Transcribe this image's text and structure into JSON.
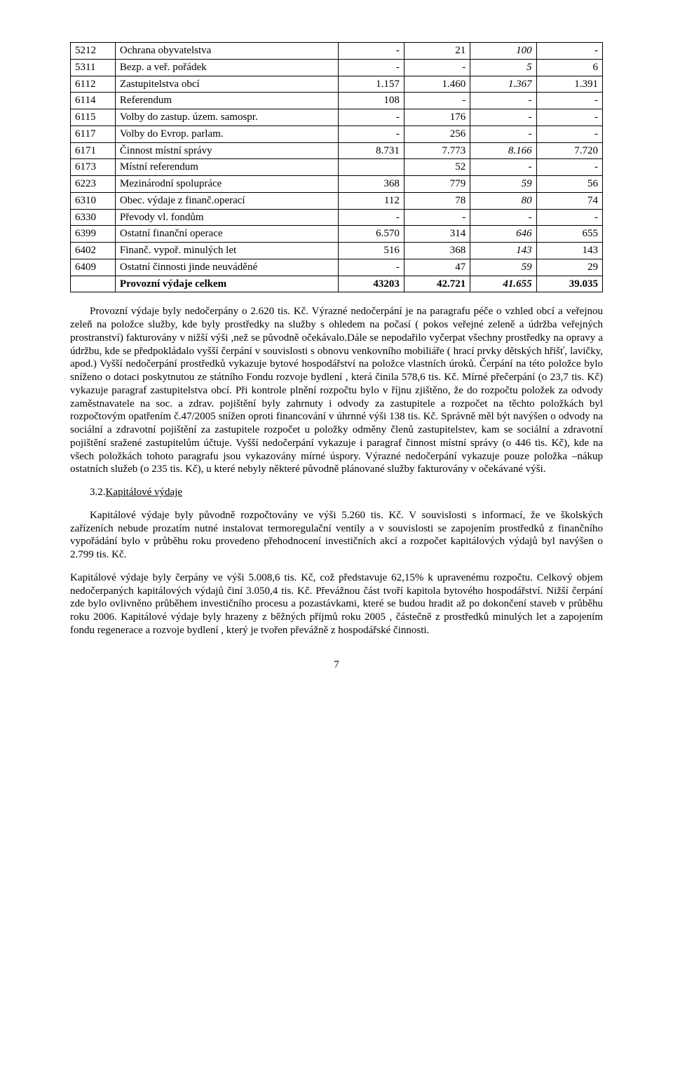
{
  "table": {
    "rows": [
      {
        "code": "5212",
        "name": "Ochrana obyvatelstva",
        "c1": "-",
        "c2": "21",
        "c3": "100",
        "c4": "-"
      },
      {
        "code": "5311",
        "name": "Bezp. a veř. pořádek",
        "c1": "-",
        "c2": "-",
        "c3": "5",
        "c4": "6"
      },
      {
        "code": "6112",
        "name": "Zastupitelstva obcí",
        "c1": "1.157",
        "c2": "1.460",
        "c3": "1.367",
        "c4": "1.391"
      },
      {
        "code": "6114",
        "name": "Referendum",
        "c1": "108",
        "c2": "-",
        "c3": "-",
        "c4": "-"
      },
      {
        "code": "6115",
        "name": "Volby do zastup. územ. samospr.",
        "c1": "-",
        "c2": "176",
        "c3": "-",
        "c4": "-"
      },
      {
        "code": "6117",
        "name": "Volby do Evrop. parlam.",
        "c1": "-",
        "c2": "256",
        "c3": "-",
        "c4": "-"
      },
      {
        "code": "6171",
        "name": "Činnost místní správy",
        "c1": "8.731",
        "c2": "7.773",
        "c3": "8.166",
        "c4": "7.720"
      },
      {
        "code": "6173",
        "name": "Místní referendum",
        "c1": "",
        "c2": "52",
        "c3": "-",
        "c4": "-"
      },
      {
        "code": "6223",
        "name": "Mezinárodní spolupráce",
        "c1": "368",
        "c2": "779",
        "c3": "59",
        "c4": "56"
      },
      {
        "code": "6310",
        "name": "Obec. výdaje z finanč.operací",
        "c1": "112",
        "c2": "78",
        "c3": "80",
        "c4": "74"
      },
      {
        "code": "6330",
        "name": "Převody vl. fondům",
        "c1": "-",
        "c2": "-",
        "c3": "-",
        "c4": "-"
      },
      {
        "code": "6399",
        "name": "Ostatní finanční operace",
        "c1": "6.570",
        "c2": "314",
        "c3": "646",
        "c4": "655"
      },
      {
        "code": "6402",
        "name": "Finanč. vypoř. minulých let",
        "c1": "516",
        "c2": "368",
        "c3": "143",
        "c4": "143"
      },
      {
        "code": "6409",
        "name": "Ostatní činnosti jinde neuváděné",
        "c1": "-",
        "c2": "47",
        "c3": "59",
        "c4": "29"
      }
    ],
    "total": {
      "code": "",
      "name": "Provozní výdaje celkem",
      "c1": "43203",
      "c2": "42.721",
      "c3": "41.655",
      "c4": "39.035"
    }
  },
  "para1": "Provozní výdaje byly nedočerpány o 2.620 tis. Kč. Výrazné nedočerpání je na paragrafu péče o vzhled obcí a veřejnou zeleň na položce služby, kde   byly prostředky na služby s ohledem na počasí ( pokos  veřejné zeleně a údržba veřejných prostranství) fakturovány v nižší výši ,než se původně očekávalo.Dále se nepodařilo vyčerpat všechny prostředky na opravy a údržbu, kde se předpokládalo vyšší čerpání v souvislosti s obnovu venkovního mobiliáře ( hrací prvky dětských hřišť, lavičky, apod.)  Vyšší nedočerpání prostředků vykazuje bytové hospodářství na položce  vlastních úroků. Čerpání na této položce bylo sníženo o dotaci poskytnutou ze státního Fondu rozvoje bydlení , která činila 578,6 tis. Kč.  Mírné přečerpání (o 23,7 tis. Kč) vykazuje paragraf zastupitelstva obcí. Při kontrole plnění rozpočtu  bylo v říjnu   zjištěno, že do  rozpočtu  položek za odvody zaměstnavatele na soc. a zdrav.  pojištění  byly zahrnuty i odvody  za zastupitele a rozpočet na těchto položkách byl rozpočtovým opatřením č.47/2005 snížen oproti financování v úhrnné výši 138 tis. Kč. Správně měl být navýšen o odvody na sociální a zdravotní pojištění za zastupitele rozpočet u položky  odměny členů zastupitelstev, kam se sociální a zdravotní pojištění sražené zastupitelům účtuje. Vyšší nedočerpání vykazuje i paragraf činnost místní správy (o  446 tis. Kč), kde na všech položkách tohoto paragrafu jsou vykazovány mírné úspory. Výrazné nedočerpání vykazuje pouze  položka –nákup ostatních služeb (o 235 tis. Kč),  u které nebyly některé původně plánované služby fakturovány v očekávané výši.",
  "section": {
    "num": "3.2.",
    "title": "Kapitálové výdaje"
  },
  "para2": "Kapitálové výdaje byly původně rozpočtovány ve výši 5.260 tis. Kč. V souvislosti s informací, že ve školských zařízeních nebude prozatím nutné instalovat termoregulační ventily a v souvislosti se zapojením prostředků z finančního vypořádání  bylo v průběhu roku provedeno přehodnocení investičních akcí a  rozpočet kapitálových výdajů byl navýšen o 2.799 tis. Kč.",
  "para3": "Kapitálové výdaje byly čerpány  ve výši 5.008,6 tis. Kč, což představuje 62,15% k upravenému rozpočtu. Celkový objem nedočerpaných kapitálových výdajů činí 3.050,4 tis. Kč. Převážnou část tvoří kapitola bytového hospodářství. Nižší čerpání zde  bylo ovlivněno průběhem investičního procesu a pozastávkami, které se  budou hradit až po dokončení staveb v průběhu roku 2006. Kapitálové výdaje byly hrazeny z  běžných příjmů roku 2005 , částečně z prostředků minulých let a zapojením fondu regenerace a rozvoje bydlení , který je tvořen převážně z hospodářské činnosti.",
  "pageNum": "7"
}
